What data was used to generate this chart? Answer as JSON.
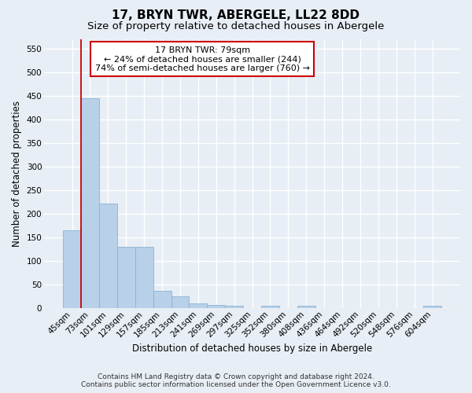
{
  "title": "17, BRYN TWR, ABERGELE, LL22 8DD",
  "subtitle": "Size of property relative to detached houses in Abergele",
  "xlabel": "Distribution of detached houses by size in Abergele",
  "ylabel": "Number of detached properties",
  "footer_line1": "Contains HM Land Registry data © Crown copyright and database right 2024.",
  "footer_line2": "Contains public sector information licensed under the Open Government Licence v3.0.",
  "categories": [
    "45sqm",
    "73sqm",
    "101sqm",
    "129sqm",
    "157sqm",
    "185sqm",
    "213sqm",
    "241sqm",
    "269sqm",
    "297sqm",
    "325sqm",
    "352sqm",
    "380sqm",
    "408sqm",
    "436sqm",
    "464sqm",
    "492sqm",
    "520sqm",
    "548sqm",
    "576sqm",
    "604sqm"
  ],
  "values": [
    165,
    445,
    222,
    130,
    130,
    37,
    24,
    10,
    6,
    5,
    0,
    4,
    0,
    5,
    0,
    0,
    0,
    0,
    0,
    0,
    5
  ],
  "bar_color": "#b8d0e8",
  "bar_edge_color": "#88b4d4",
  "red_line_x": 0.575,
  "annotation_text": "17 BRYN TWR: 79sqm\n← 24% of detached houses are smaller (244)\n74% of semi-detached houses are larger (760) →",
  "annotation_box_facecolor": "#ffffff",
  "annotation_box_edgecolor": "#cc0000",
  "ylim": [
    0,
    570
  ],
  "yticks": [
    0,
    50,
    100,
    150,
    200,
    250,
    300,
    350,
    400,
    450,
    500,
    550
  ],
  "background_color": "#e8eef5",
  "grid_color": "#ffffff",
  "title_fontsize": 11,
  "subtitle_fontsize": 9.5,
  "ylabel_fontsize": 8.5,
  "xlabel_fontsize": 8.5,
  "tick_fontsize": 7.5,
  "annotation_fontsize": 8,
  "footer_fontsize": 6.5
}
